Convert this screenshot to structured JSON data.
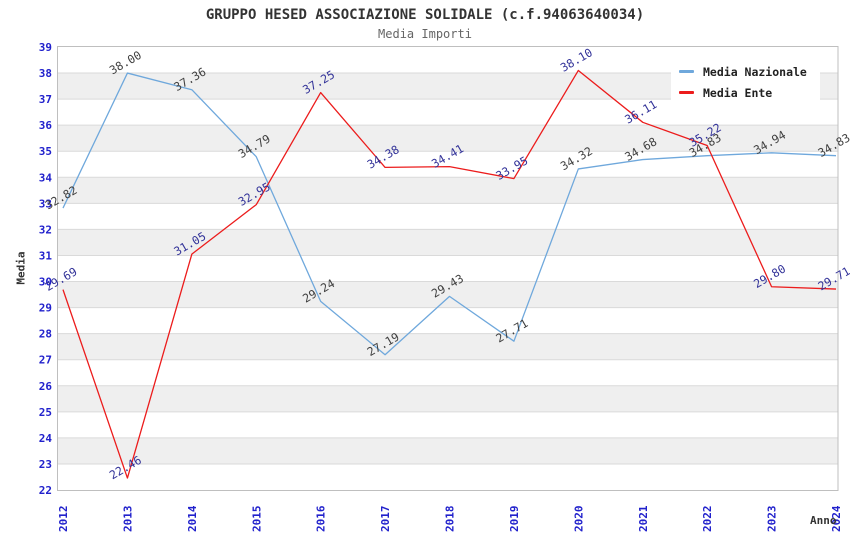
{
  "title": "GRUPPO HESED ASSOCIAZIONE SOLIDALE (c.f.94063640034)",
  "subtitle": "Media Importi",
  "axes": {
    "x_title": "Anno",
    "y_title": "Media"
  },
  "legend": {
    "items": [
      {
        "label": "Media Nazionale",
        "color": "#6FA8DC"
      },
      {
        "label": "Media Ente",
        "color": "#EC1C1C"
      }
    ]
  },
  "chart_data": {
    "type": "line",
    "title": "GRUPPO HESED ASSOCIAZIONE SOLIDALE (c.f.94063640034)",
    "subtitle": "Media Importi",
    "xlabel": "Anno",
    "ylabel": "Media",
    "x": [
      "2012",
      "2013",
      "2014",
      "2015",
      "2016",
      "2017",
      "2018",
      "2019",
      "2020",
      "2021",
      "2022",
      "2023",
      "2024"
    ],
    "series": [
      {
        "name": "Media Nazionale",
        "color": "#6FA8DC",
        "label_color": "#3F3F3F",
        "values": [
          32.82,
          38.0,
          37.36,
          34.79,
          29.24,
          27.19,
          29.43,
          27.71,
          34.32,
          34.68,
          34.83,
          34.94,
          34.83
        ]
      },
      {
        "name": "Media Ente",
        "color": "#EC1C1C",
        "label_color": "#333399",
        "values": [
          29.69,
          22.46,
          31.05,
          32.95,
          37.25,
          34.38,
          34.41,
          33.95,
          38.1,
          36.11,
          35.22,
          29.8,
          29.71
        ]
      }
    ],
    "ylim": [
      22,
      39
    ],
    "ytick_step": 1,
    "grid": "alternating-horizontal-bands",
    "legend_position": "top-right",
    "styles": {
      "tick_color": "#2121CC",
      "band_color": "#EFEFEF",
      "grid_color": "#DADADA",
      "border_color": "#BFBFBF",
      "title_color": "#333333",
      "subtitle_color": "#666666",
      "background": "#FFFFFF"
    }
  }
}
